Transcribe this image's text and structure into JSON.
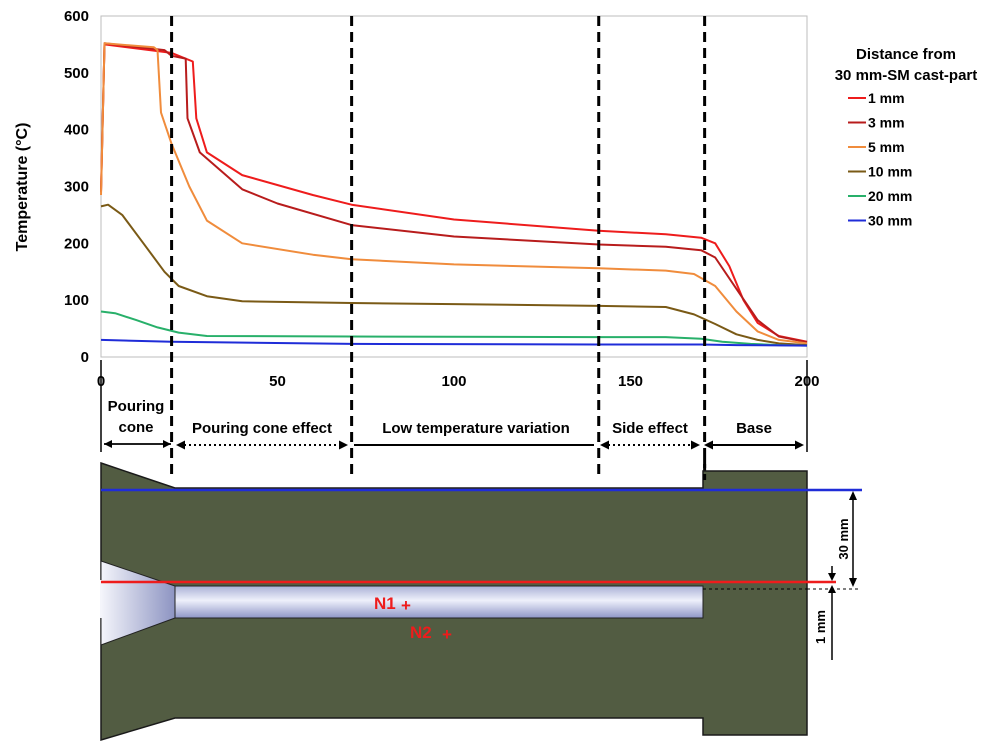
{
  "chart_data": {
    "type": "line",
    "ylabel": "Temperature (°C)",
    "xlabel": "",
    "xlim": [
      0,
      200
    ],
    "ylim": [
      0,
      600
    ],
    "x_ticks": [
      0,
      50,
      100,
      150,
      200
    ],
    "y_ticks": [
      0,
      100,
      200,
      300,
      400,
      500,
      600
    ],
    "legend": {
      "title_line1": "Distance from",
      "title_line2": "30 mm-SM cast-part",
      "placement": "right"
    },
    "vlines_x": [
      20,
      71,
      141,
      171
    ],
    "series": [
      {
        "name": "1 mm",
        "color": "#ee1c1c",
        "points": [
          [
            0,
            290
          ],
          [
            1,
            550
          ],
          [
            20,
            535
          ],
          [
            26,
            520
          ],
          [
            27,
            420
          ],
          [
            30,
            360
          ],
          [
            40,
            320
          ],
          [
            60,
            285
          ],
          [
            71,
            268
          ],
          [
            100,
            242
          ],
          [
            141,
            222
          ],
          [
            160,
            216
          ],
          [
            170,
            210
          ],
          [
            174,
            200
          ],
          [
            178,
            160
          ],
          [
            182,
            100
          ],
          [
            186,
            60
          ],
          [
            192,
            37
          ],
          [
            200,
            27
          ]
        ]
      },
      {
        "name": "3 mm",
        "color": "#b81c1c",
        "points": [
          [
            0,
            290
          ],
          [
            1,
            552
          ],
          [
            18,
            540
          ],
          [
            20,
            530
          ],
          [
            24,
            525
          ],
          [
            24.5,
            420
          ],
          [
            28,
            360
          ],
          [
            40,
            295
          ],
          [
            50,
            270
          ],
          [
            71,
            232
          ],
          [
            100,
            212
          ],
          [
            141,
            198
          ],
          [
            160,
            194
          ],
          [
            170,
            188
          ],
          [
            174,
            175
          ],
          [
            180,
            120
          ],
          [
            186,
            65
          ],
          [
            192,
            36
          ],
          [
            200,
            26
          ]
        ]
      },
      {
        "name": "5 mm",
        "color": "#f08c3c",
        "points": [
          [
            0,
            285
          ],
          [
            1,
            552
          ],
          [
            15,
            545
          ],
          [
            16,
            540
          ],
          [
            17,
            430
          ],
          [
            20,
            375
          ],
          [
            25,
            300
          ],
          [
            30,
            240
          ],
          [
            40,
            200
          ],
          [
            60,
            180
          ],
          [
            71,
            172
          ],
          [
            100,
            163
          ],
          [
            141,
            156
          ],
          [
            160,
            152
          ],
          [
            168,
            146
          ],
          [
            174,
            125
          ],
          [
            180,
            80
          ],
          [
            186,
            45
          ],
          [
            192,
            30
          ],
          [
            200,
            24
          ]
        ]
      },
      {
        "name": "10 mm",
        "color": "#7a5a16",
        "points": [
          [
            0,
            265
          ],
          [
            2,
            268
          ],
          [
            6,
            250
          ],
          [
            12,
            200
          ],
          [
            18,
            150
          ],
          [
            22,
            125
          ],
          [
            30,
            107
          ],
          [
            40,
            98
          ],
          [
            71,
            95
          ],
          [
            100,
            93
          ],
          [
            141,
            90
          ],
          [
            160,
            88
          ],
          [
            168,
            75
          ],
          [
            174,
            58
          ],
          [
            180,
            40
          ],
          [
            186,
            30
          ],
          [
            192,
            24
          ],
          [
            200,
            21
          ]
        ]
      },
      {
        "name": "20 mm",
        "color": "#28b06a",
        "points": [
          [
            0,
            80
          ],
          [
            4,
            77
          ],
          [
            10,
            65
          ],
          [
            16,
            52
          ],
          [
            22,
            43
          ],
          [
            30,
            37
          ],
          [
            71,
            36
          ],
          [
            141,
            35
          ],
          [
            160,
            35
          ],
          [
            170,
            32
          ],
          [
            176,
            27
          ],
          [
            184,
            23
          ],
          [
            192,
            21
          ],
          [
            200,
            20
          ]
        ]
      },
      {
        "name": "30 mm",
        "color": "#1f2cd8",
        "points": [
          [
            0,
            30
          ],
          [
            20,
            27
          ],
          [
            71,
            23
          ],
          [
            141,
            22
          ],
          [
            170,
            22
          ],
          [
            180,
            21
          ],
          [
            200,
            20
          ]
        ]
      }
    ]
  },
  "zones": {
    "pouring_line1": "Pouring",
    "pouring_line2": "cone",
    "cone_effect": "Pouring cone effect",
    "low_variation": "Low temperature variation",
    "side_effect": "Side effect",
    "base": "Base"
  },
  "nodes": {
    "n1": "N1",
    "n2": "N2",
    "plus": "+"
  },
  "dimensions": {
    "d30": "30 mm",
    "d1": "1 mm"
  },
  "colors": {
    "part": "#525c42",
    "cavity": "#c8cde6",
    "red_line": "#ee1c1c",
    "blue_line": "#1f2cd8"
  }
}
